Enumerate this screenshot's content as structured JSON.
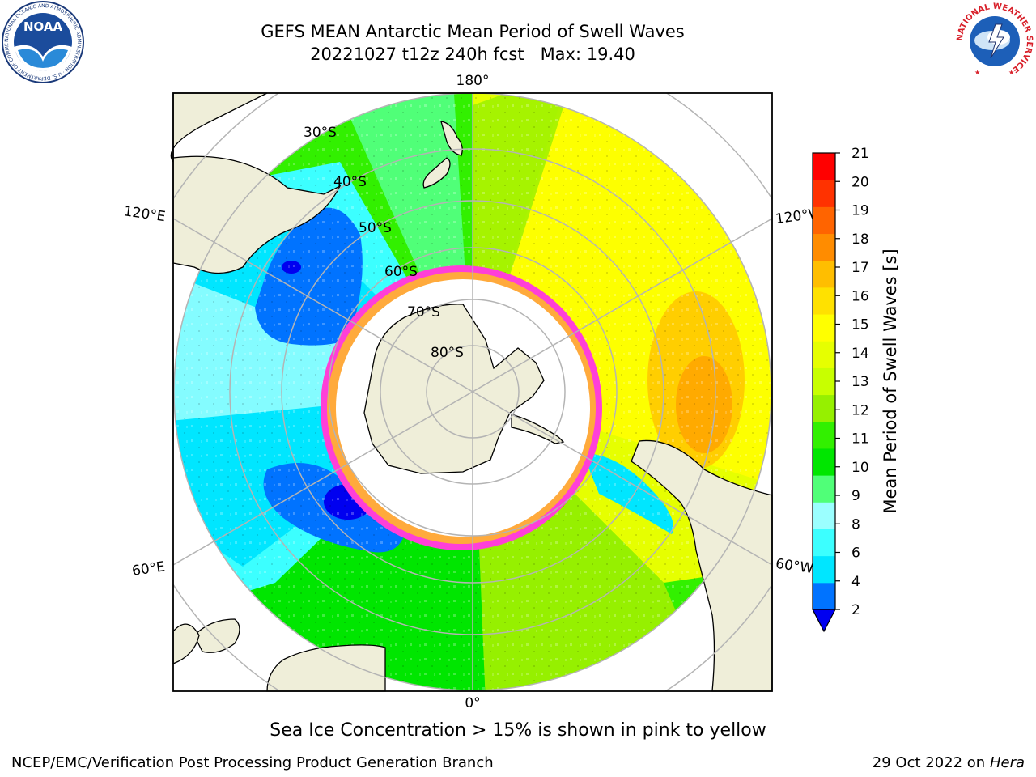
{
  "header": {
    "title_line1": "GEFS MEAN Antarctic Mean Period of Swell Waves",
    "title_line2": "20221027 t12z 240h fcst   Max: 19.40"
  },
  "logos": {
    "noaa_text": "NOAA",
    "noaa_ring_text": "NATIONAL OCEANIC AND ATMOSPHERIC ADMINISTRATION · U.S. DEPARTMENT OF COMMERCE",
    "nws_ring_text": "NATIONAL WEATHER SERVICE"
  },
  "map": {
    "longitude_labels": {
      "top": "180°",
      "bottom": "0°",
      "upper_left": "120°E",
      "lower_left": "60°E",
      "upper_right": "120°W",
      "lower_right": "60°W"
    },
    "latitude_labels": [
      "30°S",
      "40°S",
      "50°S",
      "60°S",
      "70°S",
      "80°S"
    ],
    "colors": {
      "land": "#efeed9",
      "ice_edge": "#ff3fd8",
      "ice_fringe": "#ffaa3c",
      "grid": "#b4b4b4"
    }
  },
  "colorbar": {
    "label": "Mean Period of Swell Waves [s]",
    "ticks": [
      "21",
      "20",
      "19",
      "18",
      "17",
      "16",
      "15",
      "14",
      "13",
      "12",
      "11",
      "10",
      "9",
      "8",
      "6",
      "4",
      "2"
    ],
    "colors_bottom_to_top": [
      "#0073ff",
      "#00e6ff",
      "#3cffff",
      "#9bffff",
      "#50ff78",
      "#00e600",
      "#32f000",
      "#96f000",
      "#c8ff00",
      "#e6ff00",
      "#ffff00",
      "#ffe100",
      "#ffbe00",
      "#ff8c00",
      "#ff6400",
      "#ff3200",
      "#ff0000"
    ],
    "under_color": "#0000f0"
  },
  "caption": "Sea Ice Concentration > 15% is shown in pink to yellow",
  "footer": {
    "left": "NCEP/EMC/Verification Post Processing Product Generation Branch",
    "right_prefix": "29 Oct 2022 on ",
    "right_machine": "Hera"
  }
}
